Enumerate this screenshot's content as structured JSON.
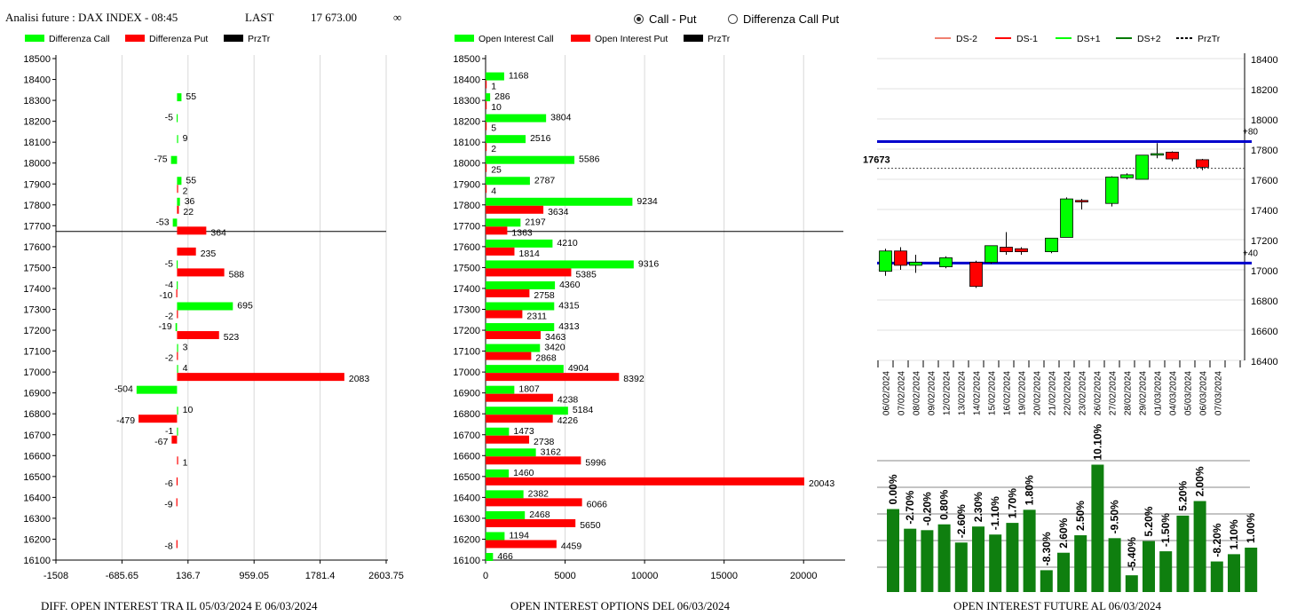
{
  "header": {
    "instrument": "Analisi future : DAX INDEX - 08:45",
    "last_label": "LAST",
    "last_value": "17 673.00",
    "infinity": "∞",
    "radio_call_put": "Call - Put",
    "radio_diff": "Differenza Call Put"
  },
  "colors": {
    "green": "#00ff00",
    "red": "#ff0000",
    "black": "#000000",
    "blue": "#0000cc",
    "darkgreen": "#007a00",
    "salmon": "#f08070"
  },
  "chart_data": [
    {
      "type": "bar",
      "orientation": "horizontal",
      "caption": "DIFF. OPEN INTEREST TRA IL 05/03/2024 E 06/03/2024",
      "legend": [
        "Differenza Call",
        "Differenza Put",
        "PrzTr"
      ],
      "strikes": [
        18500,
        18400,
        18300,
        18200,
        18100,
        18000,
        17900,
        17800,
        17700,
        17600,
        17500,
        17400,
        17300,
        17200,
        17100,
        17000,
        16900,
        16800,
        16700,
        16600,
        16500,
        16400,
        16300,
        16200,
        16100
      ],
      "x_ticks": [
        "-1508",
        "-685.65",
        "136.7",
        "959.05",
        "1781.4",
        "2603.75"
      ],
      "xlim": [
        -1508,
        2603.75
      ],
      "call_diff": [
        null,
        null,
        55,
        -5,
        9,
        -75,
        55,
        36,
        -53,
        null,
        -5,
        -4,
        695,
        -19,
        3,
        4,
        -504,
        10,
        -1,
        null,
        null,
        null,
        null,
        null,
        null
      ],
      "put_diff": [
        null,
        null,
        null,
        null,
        null,
        null,
        2,
        22,
        364,
        235,
        588,
        -10,
        -2,
        523,
        -2,
        2083,
        null,
        -479,
        -67,
        1,
        -6,
        -9,
        null,
        -8,
        null
      ],
      "price_line": 17673
    },
    {
      "type": "bar",
      "orientation": "horizontal",
      "caption": "OPEN INTEREST OPTIONS DEL 06/03/2024",
      "legend": [
        "Open Interest Call",
        "Open Interest Put",
        "PrzTr"
      ],
      "strikes": [
        18500,
        18400,
        18300,
        18200,
        18100,
        18000,
        17900,
        17800,
        17700,
        17600,
        17500,
        17400,
        17300,
        17200,
        17100,
        17000,
        16900,
        16800,
        16700,
        16600,
        16500,
        16400,
        16300,
        16200,
        16100
      ],
      "x_ticks": [
        "0",
        "5000",
        "10000",
        "15000",
        "20000"
      ],
      "xlim": [
        0,
        22500
      ],
      "call_oi": [
        null,
        1168,
        286,
        3804,
        2516,
        5586,
        2787,
        9234,
        2197,
        4210,
        9316,
        4360,
        4315,
        4313,
        3420,
        4904,
        1807,
        5184,
        1473,
        3162,
        1460,
        2382,
        2468,
        1194,
        466
      ],
      "put_oi": [
        null,
        1,
        10,
        5,
        2,
        25,
        4,
        3634,
        1363,
        1814,
        5385,
        2758,
        2311,
        3463,
        2868,
        8392,
        4238,
        4226,
        2738,
        5996,
        20043,
        6066,
        5650,
        4459,
        null
      ],
      "price_line": 17673
    },
    {
      "type": "candlestick",
      "legend": [
        "DS-2",
        "DS-1",
        "DS+1",
        "DS+2",
        "PrzTr"
      ],
      "y_ticks": [
        "18400",
        "18200",
        "18000",
        "17800",
        "17600",
        "17400",
        "17200",
        "17000",
        "16800",
        "16600",
        "16400"
      ],
      "ylim": [
        16400,
        18400
      ],
      "dates": [
        "06/02/2024",
        "07/02/2024",
        "08/02/2024",
        "09/02/2024",
        "12/02/2024",
        "13/02/2024",
        "14/02/2024",
        "15/02/2024",
        "16/02/2024",
        "19/02/2024",
        "20/02/2024",
        "21/02/2024",
        "22/02/2024",
        "23/02/2024",
        "26/02/2024",
        "27/02/2024",
        "28/02/2024",
        "29/02/2024",
        "01/03/2024",
        "04/03/2024",
        "05/03/2024",
        "06/03/2024",
        "07/03/2024"
      ],
      "candles": [
        {
          "o": 16990,
          "h": 17140,
          "l": 16960,
          "c": 17125
        },
        {
          "o": 17125,
          "h": 17150,
          "l": 17000,
          "c": 17030
        },
        {
          "o": 17030,
          "h": 17100,
          "l": 16980,
          "c": 17050
        },
        null,
        {
          "o": 17020,
          "h": 17090,
          "l": 17010,
          "c": 17080
        },
        null,
        {
          "o": 17050,
          "h": 17060,
          "l": 16880,
          "c": 16890
        },
        {
          "o": 17050,
          "h": 17160,
          "l": 17040,
          "c": 17160
        },
        {
          "o": 17150,
          "h": 17250,
          "l": 17100,
          "c": 17120
        },
        {
          "o": 17140,
          "h": 17150,
          "l": 17100,
          "c": 17120
        },
        null,
        {
          "o": 17120,
          "h": 17210,
          "l": 17110,
          "c": 17210
        },
        {
          "o": 17215,
          "h": 17480,
          "l": 17215,
          "c": 17470
        },
        {
          "o": 17460,
          "h": 17470,
          "l": 17400,
          "c": 17450
        },
        null,
        {
          "o": 17440,
          "h": 17620,
          "l": 17420,
          "c": 17615
        },
        {
          "o": 17610,
          "h": 17640,
          "l": 17600,
          "c": 17630
        },
        {
          "o": 17600,
          "h": 17760,
          "l": 17600,
          "c": 17760
        },
        {
          "o": 17760,
          "h": 17840,
          "l": 17740,
          "c": 17770
        },
        {
          "o": 17780,
          "h": 17785,
          "l": 17720,
          "c": 17735
        },
        null,
        {
          "o": 17730,
          "h": 17735,
          "l": 17660,
          "c": 17680
        },
        null
      ],
      "level_upper": 17850,
      "level_upper_label": "+80",
      "level_lower": 17045,
      "level_lower_label": "+40",
      "price_line": 17673,
      "price_label": "17673"
    },
    {
      "type": "bar",
      "caption": "OPEN INTEREST FUTURE AL 06/03/2024",
      "labels": [
        "0.00%",
        "-2.70%",
        "-0.20%",
        "0.80%",
        "-2.60%",
        "2.30%",
        "-1.10%",
        "1.70%",
        "1.80%",
        "-8.30%",
        "2.60%",
        "2.50%",
        "10.10%",
        "-9.50%",
        "-5.40%",
        "5.20%",
        "-1.50%",
        "5.20%",
        "2.00%",
        "-8.20%",
        "1.10%",
        "1.00%"
      ],
      "values": [
        100.0,
        97.3,
        97.1,
        97.9,
        95.4,
        97.6,
        96.5,
        98.1,
        99.9,
        91.6,
        94.0,
        96.4,
        106.1,
        96.0,
        90.9,
        95.6,
        94.2,
        99.1,
        101.1,
        92.8,
        93.8,
        94.7
      ]
    }
  ]
}
